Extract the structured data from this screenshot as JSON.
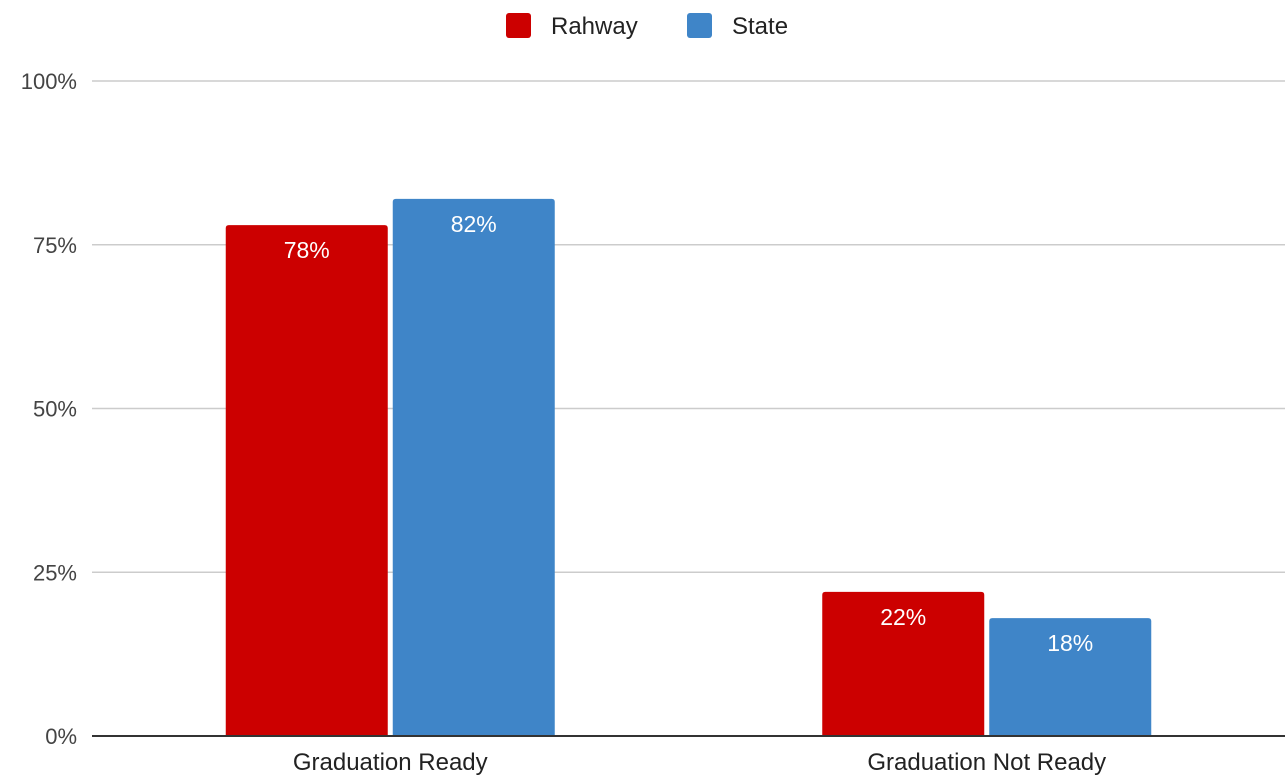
{
  "chart_data": {
    "type": "bar",
    "categories": [
      "Graduation Ready",
      "Graduation Not Ready"
    ],
    "series": [
      {
        "name": "Rahway",
        "color": "#cc0000",
        "values": [
          78,
          22
        ],
        "labels": [
          "78%",
          "22%"
        ]
      },
      {
        "name": "State",
        "color": "#3f85c8",
        "values": [
          82,
          18
        ],
        "labels": [
          "82%",
          "18%"
        ]
      }
    ],
    "y_ticks": [
      {
        "value": 0,
        "label": "0%"
      },
      {
        "value": 25,
        "label": "25%"
      },
      {
        "value": 50,
        "label": "50%"
      },
      {
        "value": 75,
        "label": "75%"
      },
      {
        "value": 100,
        "label": "100%"
      }
    ],
    "ylim": [
      0,
      100
    ],
    "title": "",
    "xlabel": "",
    "ylabel": "",
    "grid": true,
    "legend_position": "top-center"
  }
}
